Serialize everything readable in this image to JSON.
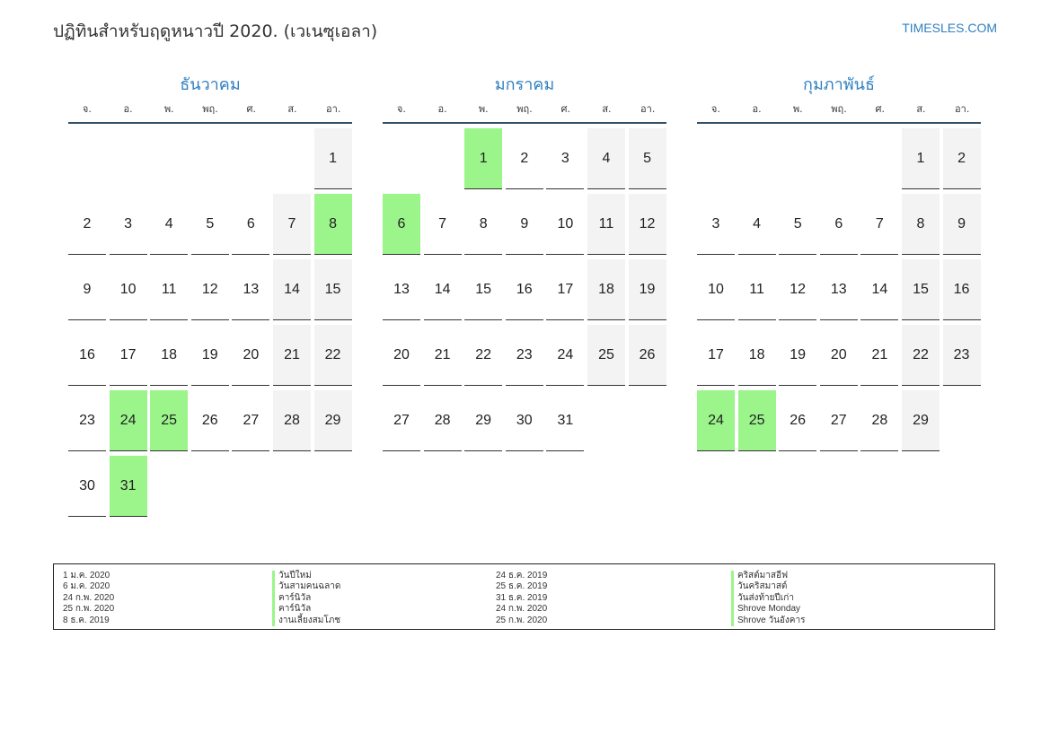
{
  "header": {
    "title": "ปฏิทินสำหรับฤดูหนาวปี 2020. (เวเนซุเอลา)",
    "site": "TIMESLES.COM"
  },
  "weekdays": [
    "จ.",
    "อ.",
    "พ.",
    "พฤ.",
    "ศ.",
    "ส.",
    "อา."
  ],
  "colors": {
    "accent": "#2f7fc0",
    "holiday": "#9bf58a",
    "weekend": "#f3f3f3"
  },
  "months": [
    {
      "name": "ธันวาคม",
      "offset": 6,
      "days": 31,
      "weekend": [
        1,
        7,
        8,
        14,
        15,
        21,
        22,
        28,
        29
      ],
      "holidays": [
        8,
        24,
        25,
        31
      ]
    },
    {
      "name": "มกราคม",
      "offset": 2,
      "days": 31,
      "weekend": [
        4,
        5,
        11,
        12,
        18,
        19,
        25,
        26
      ],
      "holidays": [
        1,
        6
      ]
    },
    {
      "name": "กุมภาพันธ์",
      "offset": 5,
      "days": 29,
      "weekend": [
        1,
        2,
        8,
        9,
        15,
        16,
        22,
        23,
        29
      ],
      "holidays": [
        24,
        25
      ]
    }
  ],
  "legend": {
    "col1_dates": [
      "1 ม.ค. 2020",
      "6 ม.ค. 2020",
      "24 ก.พ. 2020",
      "25 ก.พ. 2020",
      "8 ธ.ค. 2019"
    ],
    "col1_names": [
      "วันปีใหม่",
      "วันสามคนฉลาด",
      "คาร์นิวัล",
      "คาร์นิวัล",
      "งานเลี้ยงสมโภช"
    ],
    "col2_dates": [
      "24 ธ.ค. 2019",
      "25 ธ.ค. 2019",
      "31 ธ.ค. 2019",
      "24 ก.พ. 2020",
      "25 ก.พ. 2020"
    ],
    "col2_names": [
      "คริสต์มาสอีฟ",
      "วันคริสมาสต์",
      "วันส่งท้ายปีเก่า",
      "Shrove Monday",
      "Shrove วันอังคาร"
    ]
  }
}
